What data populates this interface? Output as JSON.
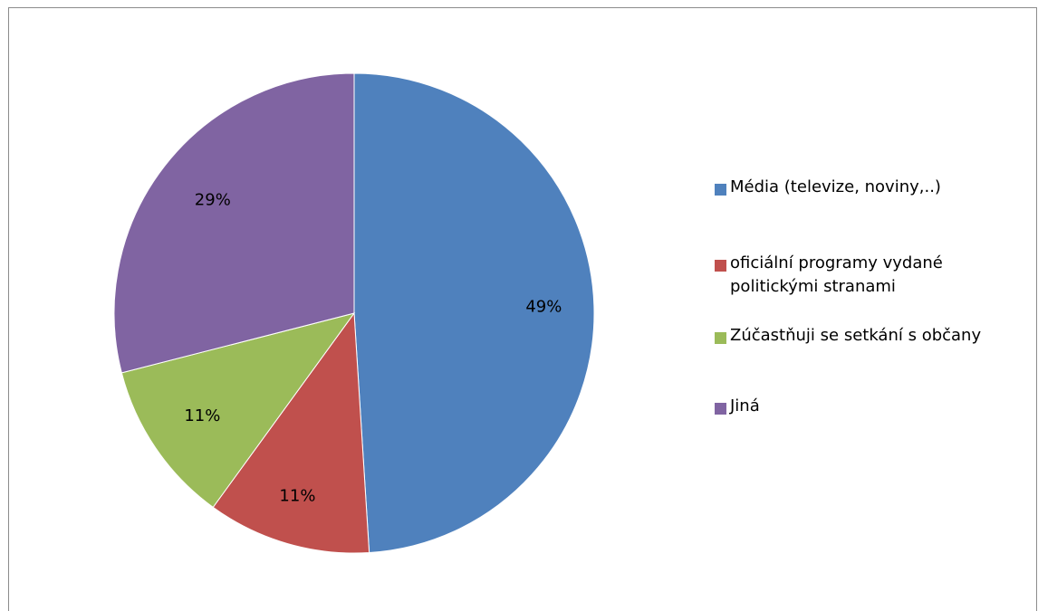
{
  "chart_data": {
    "type": "pie",
    "categories": [
      "Média (televize, noviny,..)",
      "oficiální programy vydané\npolitickými stranami",
      "Zúčastňuji se setkání s občany",
      "Jiná"
    ],
    "values": [
      49,
      11,
      11,
      29
    ],
    "data_labels": [
      "49%",
      "11%",
      "11%",
      "29%"
    ],
    "colors": [
      "#4f81bd",
      "#c0504d",
      "#9bbb59",
      "#8064a2"
    ],
    "start_angle_deg": 0,
    "direction": "clockwise",
    "legend_position": "right"
  }
}
